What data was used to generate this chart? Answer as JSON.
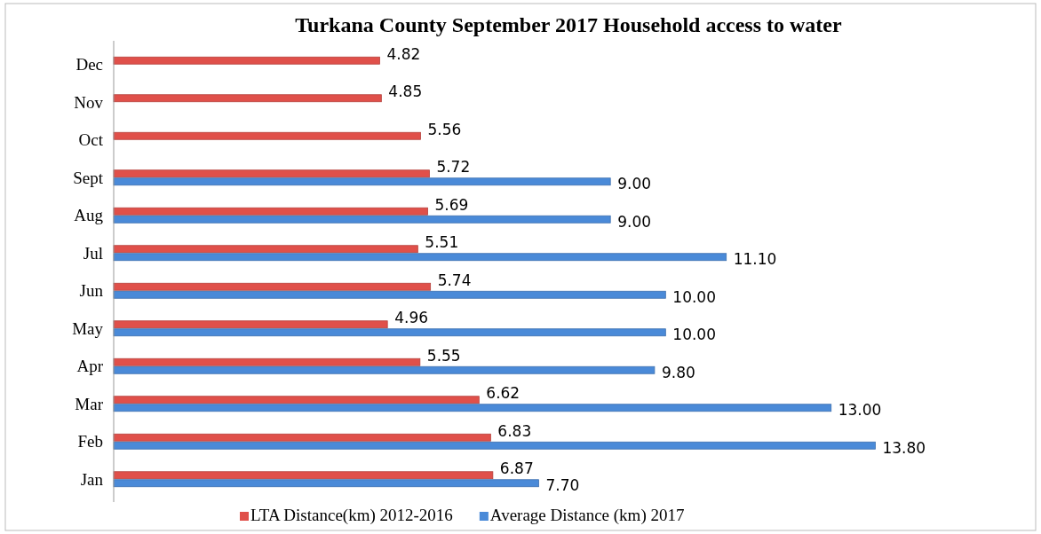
{
  "chart_data": {
    "type": "bar",
    "orientation": "horizontal",
    "title": "Turkana County September 2017 Household access to water",
    "categories": [
      "Dec",
      "Nov",
      "Oct",
      "Sept",
      "Aug",
      "Jul",
      "Jun",
      "May",
      "Apr",
      "Mar",
      "Feb",
      "Jan"
    ],
    "series": [
      {
        "name": "LTA Distance(km) 2012-2016",
        "color": "#e0504a",
        "values": [
          4.82,
          4.85,
          5.56,
          5.72,
          5.69,
          5.51,
          5.74,
          4.96,
          5.55,
          6.62,
          6.83,
          6.87
        ],
        "value_labels": [
          "4.82",
          "4.85",
          "5.56",
          "5.72",
          "5.69",
          "5.51",
          "5.74",
          "4.96",
          "5.55",
          "6.62",
          "6.83",
          "6.87"
        ]
      },
      {
        "name": "Average Distance (km) 2017",
        "color": "#4a8ad8",
        "values": [
          null,
          null,
          null,
          9.0,
          9.0,
          11.1,
          10.0,
          10.0,
          9.8,
          13.0,
          13.8,
          7.7
        ],
        "value_labels": [
          null,
          null,
          null,
          "9.00",
          "9.00",
          "11.10",
          "10.00",
          "10.00",
          "9.80",
          "13.00",
          "13.80",
          "7.70"
        ]
      }
    ],
    "legend": "bottom"
  }
}
